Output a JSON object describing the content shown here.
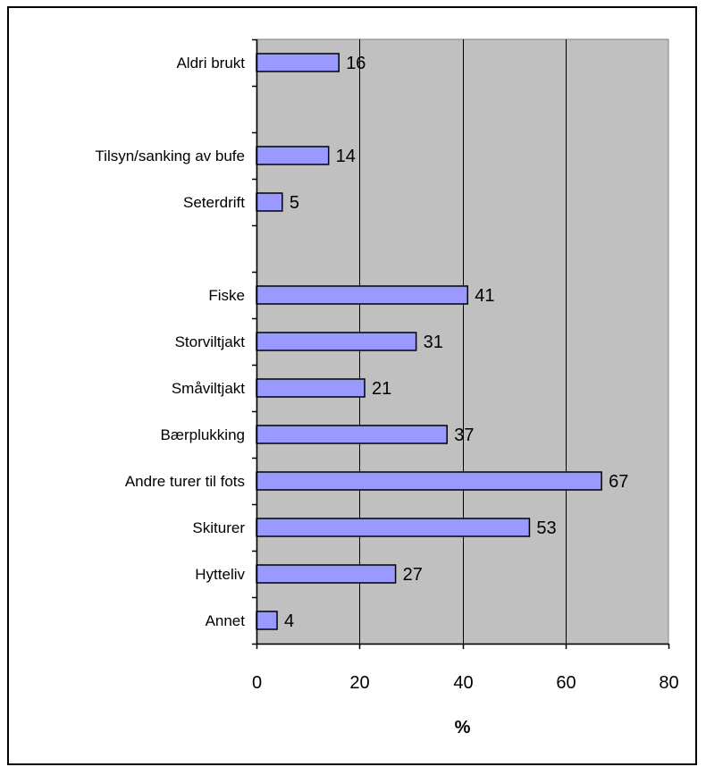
{
  "chart_data": {
    "type": "bar",
    "orientation": "horizontal",
    "categories": [
      "Aldri brukt",
      "",
      "Tilsyn/sanking av bufe",
      "Seterdrift",
      "",
      "Fiske",
      "Storviltjakt",
      "Småviltjakt",
      "Bærplukking",
      "Andre turer til fots",
      "Skiturer",
      "Hytteliv",
      "Annet"
    ],
    "values": [
      16,
      null,
      14,
      5,
      null,
      41,
      31,
      21,
      37,
      67,
      53,
      27,
      4
    ],
    "xlabel": "%",
    "xlim": [
      0,
      80
    ],
    "xticks": [
      0,
      20,
      40,
      60,
      80
    ],
    "grid": "vertical",
    "legend": "none",
    "colors": {
      "bar_fill": "#9999ff",
      "bar_stroke": "#000000",
      "plot_background": "#c0c0c0",
      "gridline": "#000000"
    }
  }
}
